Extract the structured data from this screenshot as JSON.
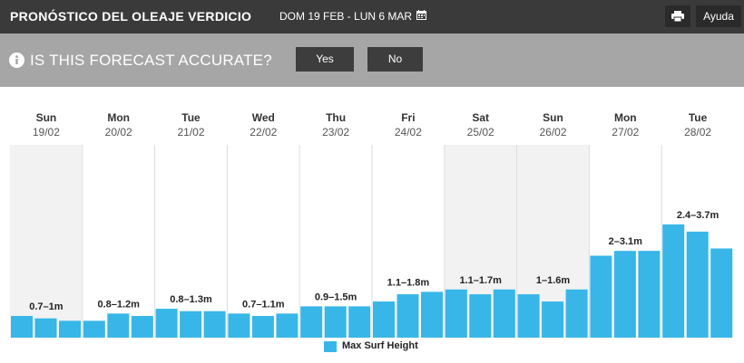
{
  "header": {
    "title": "PRONÓSTICO DEL OLEAJE VERDICIO",
    "date_range": "DOM 19 FEB - LUN 6 MAR",
    "calendar_icon": "calendar-icon",
    "print_icon": "print-icon",
    "help_label": "Ayuda"
  },
  "feedback": {
    "info_icon": "info-icon",
    "question": "IS THIS FORECAST ACCURATE?",
    "yes_label": "Yes",
    "no_label": "No"
  },
  "colors": {
    "bar": "#38b6e8",
    "weekend_shade": "#f2f2f2",
    "topbar": "#3a3a3a",
    "question_bar": "#a6a6a6"
  },
  "chart_data": {
    "type": "bar",
    "days": [
      {
        "day": "Sun",
        "date": "19/02",
        "label": "0.7–1m",
        "values": [
          0.9,
          0.8,
          0.7
        ],
        "weekend": true
      },
      {
        "day": "Mon",
        "date": "20/02",
        "label": "0.8–1.2m",
        "values": [
          0.7,
          1.0,
          0.9
        ],
        "weekend": false
      },
      {
        "day": "Tue",
        "date": "21/02",
        "label": "0.8–1.3m",
        "values": [
          1.2,
          1.1,
          1.1
        ],
        "weekend": false
      },
      {
        "day": "Wed",
        "date": "22/02",
        "label": "0.7–1.1m",
        "values": [
          1.0,
          0.9,
          1.0
        ],
        "weekend": false
      },
      {
        "day": "Thu",
        "date": "23/02",
        "label": "0.9–1.5m",
        "values": [
          1.3,
          1.3,
          1.3
        ],
        "weekend": false
      },
      {
        "day": "Fri",
        "date": "24/02",
        "label": "1.1–1.8m",
        "values": [
          1.5,
          1.8,
          1.9
        ],
        "weekend": false
      },
      {
        "day": "Sat",
        "date": "25/02",
        "label": "1.1–1.7m",
        "values": [
          2.0,
          1.8,
          2.0
        ],
        "weekend": true
      },
      {
        "day": "Sun",
        "date": "26/02",
        "label": "1–1.6m",
        "values": [
          1.8,
          1.5,
          2.0
        ],
        "weekend": true
      },
      {
        "day": "Mon",
        "date": "27/02",
        "label": "2–3.1m",
        "values": [
          3.4,
          3.6,
          3.6
        ],
        "weekend": false
      },
      {
        "day": "Tue",
        "date": "28/02",
        "label": "2.4–3.7m",
        "values": [
          4.7,
          4.4,
          3.7
        ],
        "weekend": false
      }
    ],
    "ylim": [
      0,
      8
    ],
    "legend": "Max Surf Height",
    "legend_position": "bottom-center"
  }
}
